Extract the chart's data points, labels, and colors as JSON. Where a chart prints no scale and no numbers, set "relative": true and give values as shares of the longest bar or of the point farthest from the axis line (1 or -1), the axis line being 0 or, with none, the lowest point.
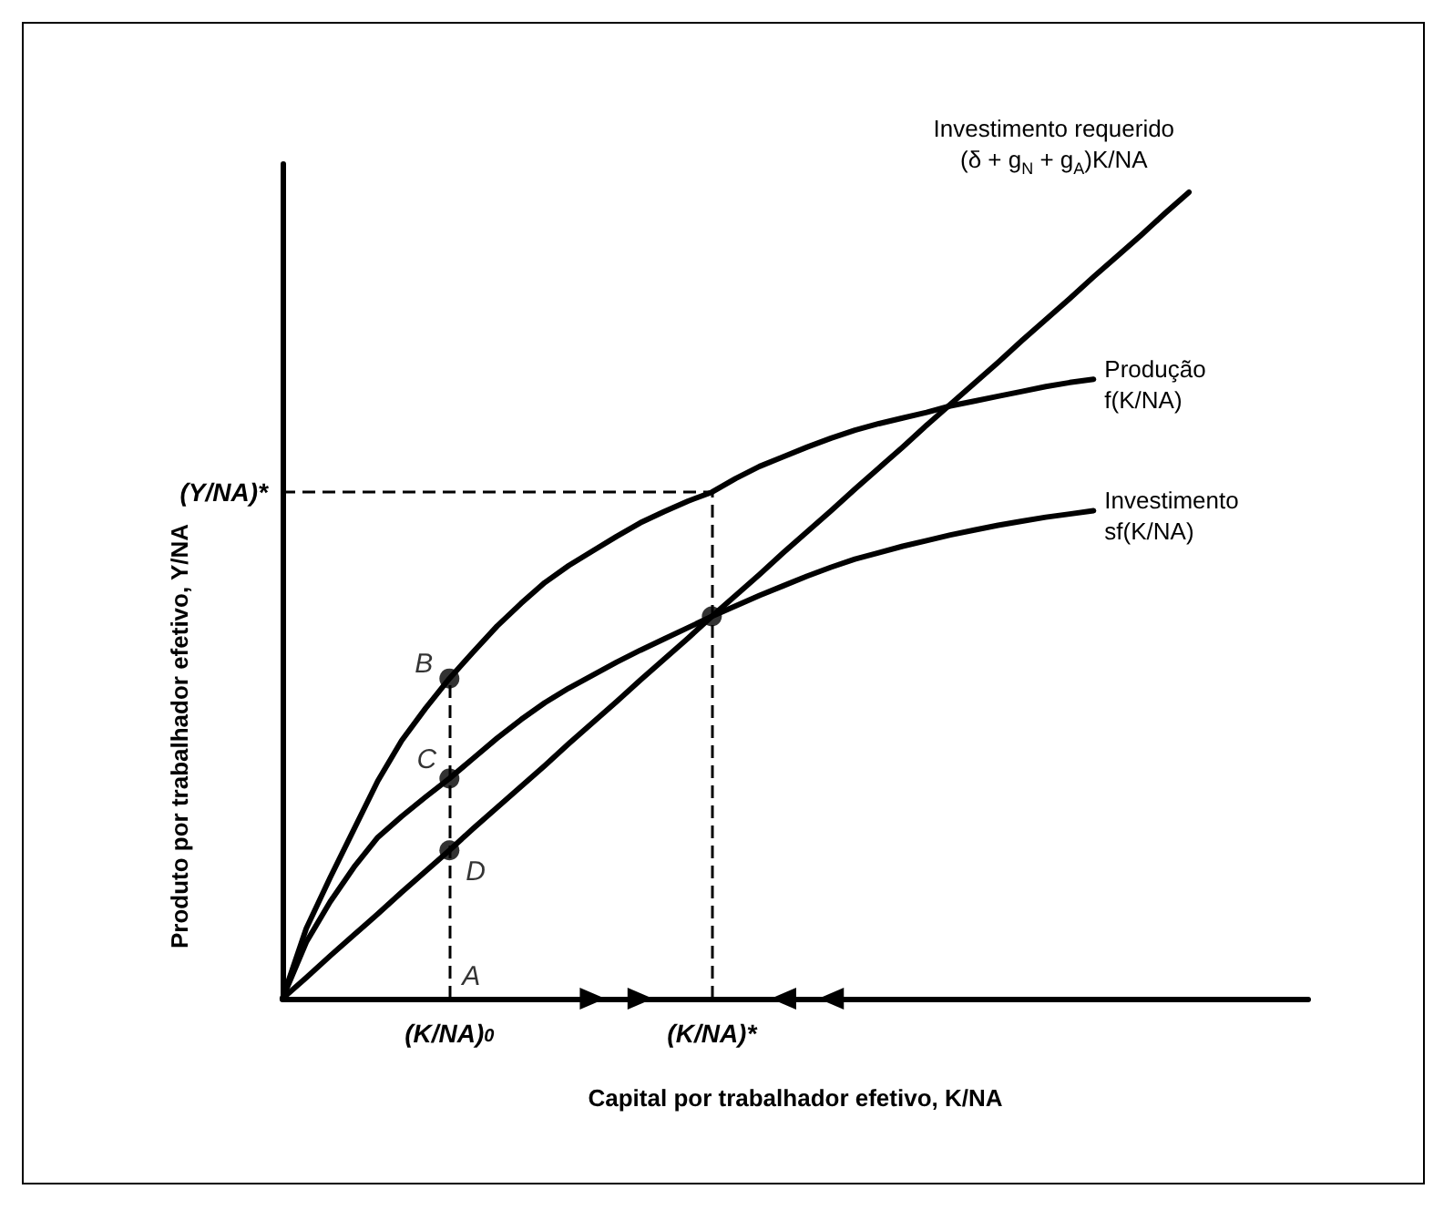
{
  "chart_data": {
    "type": "line",
    "relative": true,
    "xlabel": "Capital por trabalhador efetivo, K/NA",
    "ylabel": "Produto por trabalhador efetivo, Y/NA",
    "marker": "none",
    "line_style": "solid",
    "categories": [
      null,
      null,
      null,
      null,
      null,
      null,
      null,
      "(K/NA)$_{0}$",
      null,
      null,
      null,
      null,
      null,
      null,
      null,
      null,
      null,
      null,
      "(K/NA)*",
      null,
      null,
      null,
      null,
      null,
      null,
      null,
      null,
      null,
      null,
      null,
      null,
      null,
      null,
      null,
      null,
      null,
      null,
      null,
      null,
      null,
      null,
      null,
      null,
      null
    ],
    "series": [
      {
        "name": "Investimento requerido\n(δ + g$_{N}$ + g$_{A}$)K/NA",
        "color": "#000000",
        "values": [
          0,
          0.026,
          0.053,
          0.079,
          0.105,
          0.132,
          0.158,
          0.184,
          0.211,
          0.237,
          0.263,
          0.289,
          0.316,
          0.342,
          0.368,
          0.395,
          0.421,
          0.447,
          0.474,
          0.5,
          0.526,
          0.553,
          0.579,
          0.605,
          0.632,
          0.658,
          0.684,
          0.711,
          0.737,
          0.763,
          0.789,
          0.816,
          0.842,
          0.868,
          0.895,
          0.921,
          0.947,
          0.974,
          1,
          null,
          null,
          null,
          null,
          null
        ]
      },
      {
        "name": "Produção\nf(K/NA)",
        "color": "#000000",
        "values": [
          0,
          0.087,
          0.15,
          0.21,
          0.27,
          0.32,
          0.36,
          0.397,
          0.43,
          0.462,
          0.49,
          0.516,
          0.537,
          0.555,
          0.573,
          0.59,
          0.604,
          0.617,
          0.628,
          0.645,
          0.66,
          0.672,
          0.684,
          0.695,
          0.705,
          0.713,
          0.72,
          0.727,
          0.735,
          0.741,
          0.747,
          0.753,
          0.759,
          0.764,
          0.768,
          null,
          null,
          null,
          null,
          null,
          null,
          null,
          null,
          null
        ]
      },
      {
        "name": "Investimento\nsf(K/NA)",
        "color": "#000000",
        "values": [
          0,
          0.07,
          0.12,
          0.163,
          0.2,
          0.226,
          0.25,
          0.273,
          0.298,
          0.323,
          0.346,
          0.367,
          0.385,
          0.401,
          0.417,
          0.432,
          0.446,
          0.46,
          0.474,
          0.487,
          0.5,
          0.512,
          0.524,
          0.535,
          0.545,
          0.553,
          0.561,
          0.568,
          0.575,
          0.581,
          0.587,
          0.592,
          0.597,
          0.601,
          0.605,
          null,
          null,
          null,
          null,
          null,
          null,
          null,
          null,
          null
        ]
      },
      {
        "type": "scatter",
        "marker": "circle",
        "color": "#000000",
        "x": [
          "(K/NA)$_{0}$",
          "(K/NA)$_{0}$",
          "(K/NA)$_{0}$",
          "(K/NA)*"
        ],
        "values": [
          0.397,
          0.273,
          0.184,
          0.474
        ]
      }
    ],
    "ref_lines": [
      {
        "axis": "y",
        "value": 0.628,
        "label": "(Y/NA)*",
        "color": "#000000",
        "line_style": "dashed"
      }
    ],
    "annotations": [
      "A",
      {
        "text": "B",
        "x": "(K/NA)$_{0}$",
        "y": 0.397
      },
      {
        "text": "C",
        "x": "(K/NA)$_{0}$",
        "y": 0.273
      },
      {
        "text": "D",
        "x": "(K/NA)$_{0}$",
        "y": 0.184
      }
    ]
  }
}
